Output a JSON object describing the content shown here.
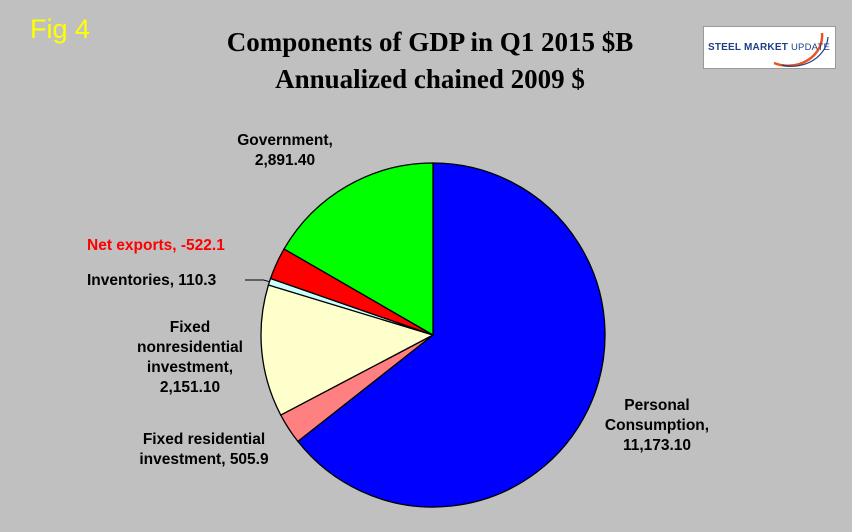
{
  "header": {
    "fig_label": "Fig 4",
    "title_line1": "Components of GDP in Q1 2015 $B",
    "title_line2": "Annualized chained 2009 $",
    "logo_text_bold": "STEEL MARKET",
    "logo_text_light": "UPDATE"
  },
  "colors": {
    "background": "#c0c0c0",
    "fig_label": "#ffff00",
    "logo_accent": "#e8541c",
    "logo_blue": "#1f3f86",
    "net_exports_label": "#ff0000"
  },
  "chart_data": {
    "type": "pie",
    "title": "Components of GDP in Q1 2015 $B Annualized chained 2009 $",
    "start_angle_deg": 0,
    "direction": "clockwise",
    "slices": [
      {
        "name": "Personal Consumption",
        "value": 11173.1,
        "label_lines": [
          "Personal",
          "Consumption,",
          "11,173.10"
        ],
        "color": "#0000ff",
        "label_color": "#000000"
      },
      {
        "name": "Fixed residential investment",
        "value": 505.9,
        "label_lines": [
          "Fixed residential",
          "investment, 505.9"
        ],
        "color": "#ff8080",
        "label_color": "#000000"
      },
      {
        "name": "Fixed nonresidential investment",
        "value": 2151.1,
        "label_lines": [
          "Fixed",
          "nonresidential",
          "investment,",
          "2,151.10"
        ],
        "color": "#ffffcc",
        "label_color": "#000000"
      },
      {
        "name": "Inventories",
        "value": 110.3,
        "label_lines": [
          "Inventories, 110.3"
        ],
        "color": "#ccffff",
        "label_color": "#000000"
      },
      {
        "name": "Net exports",
        "value": 522.1,
        "label_lines": [
          "Net exports, -522.1"
        ],
        "color": "#ff0000",
        "label_color": "#ff0000"
      },
      {
        "name": "Government",
        "value": 2891.4,
        "label_lines": [
          "Government,",
          "2,891.40"
        ],
        "color": "#00ff00",
        "label_color": "#000000"
      }
    ]
  }
}
